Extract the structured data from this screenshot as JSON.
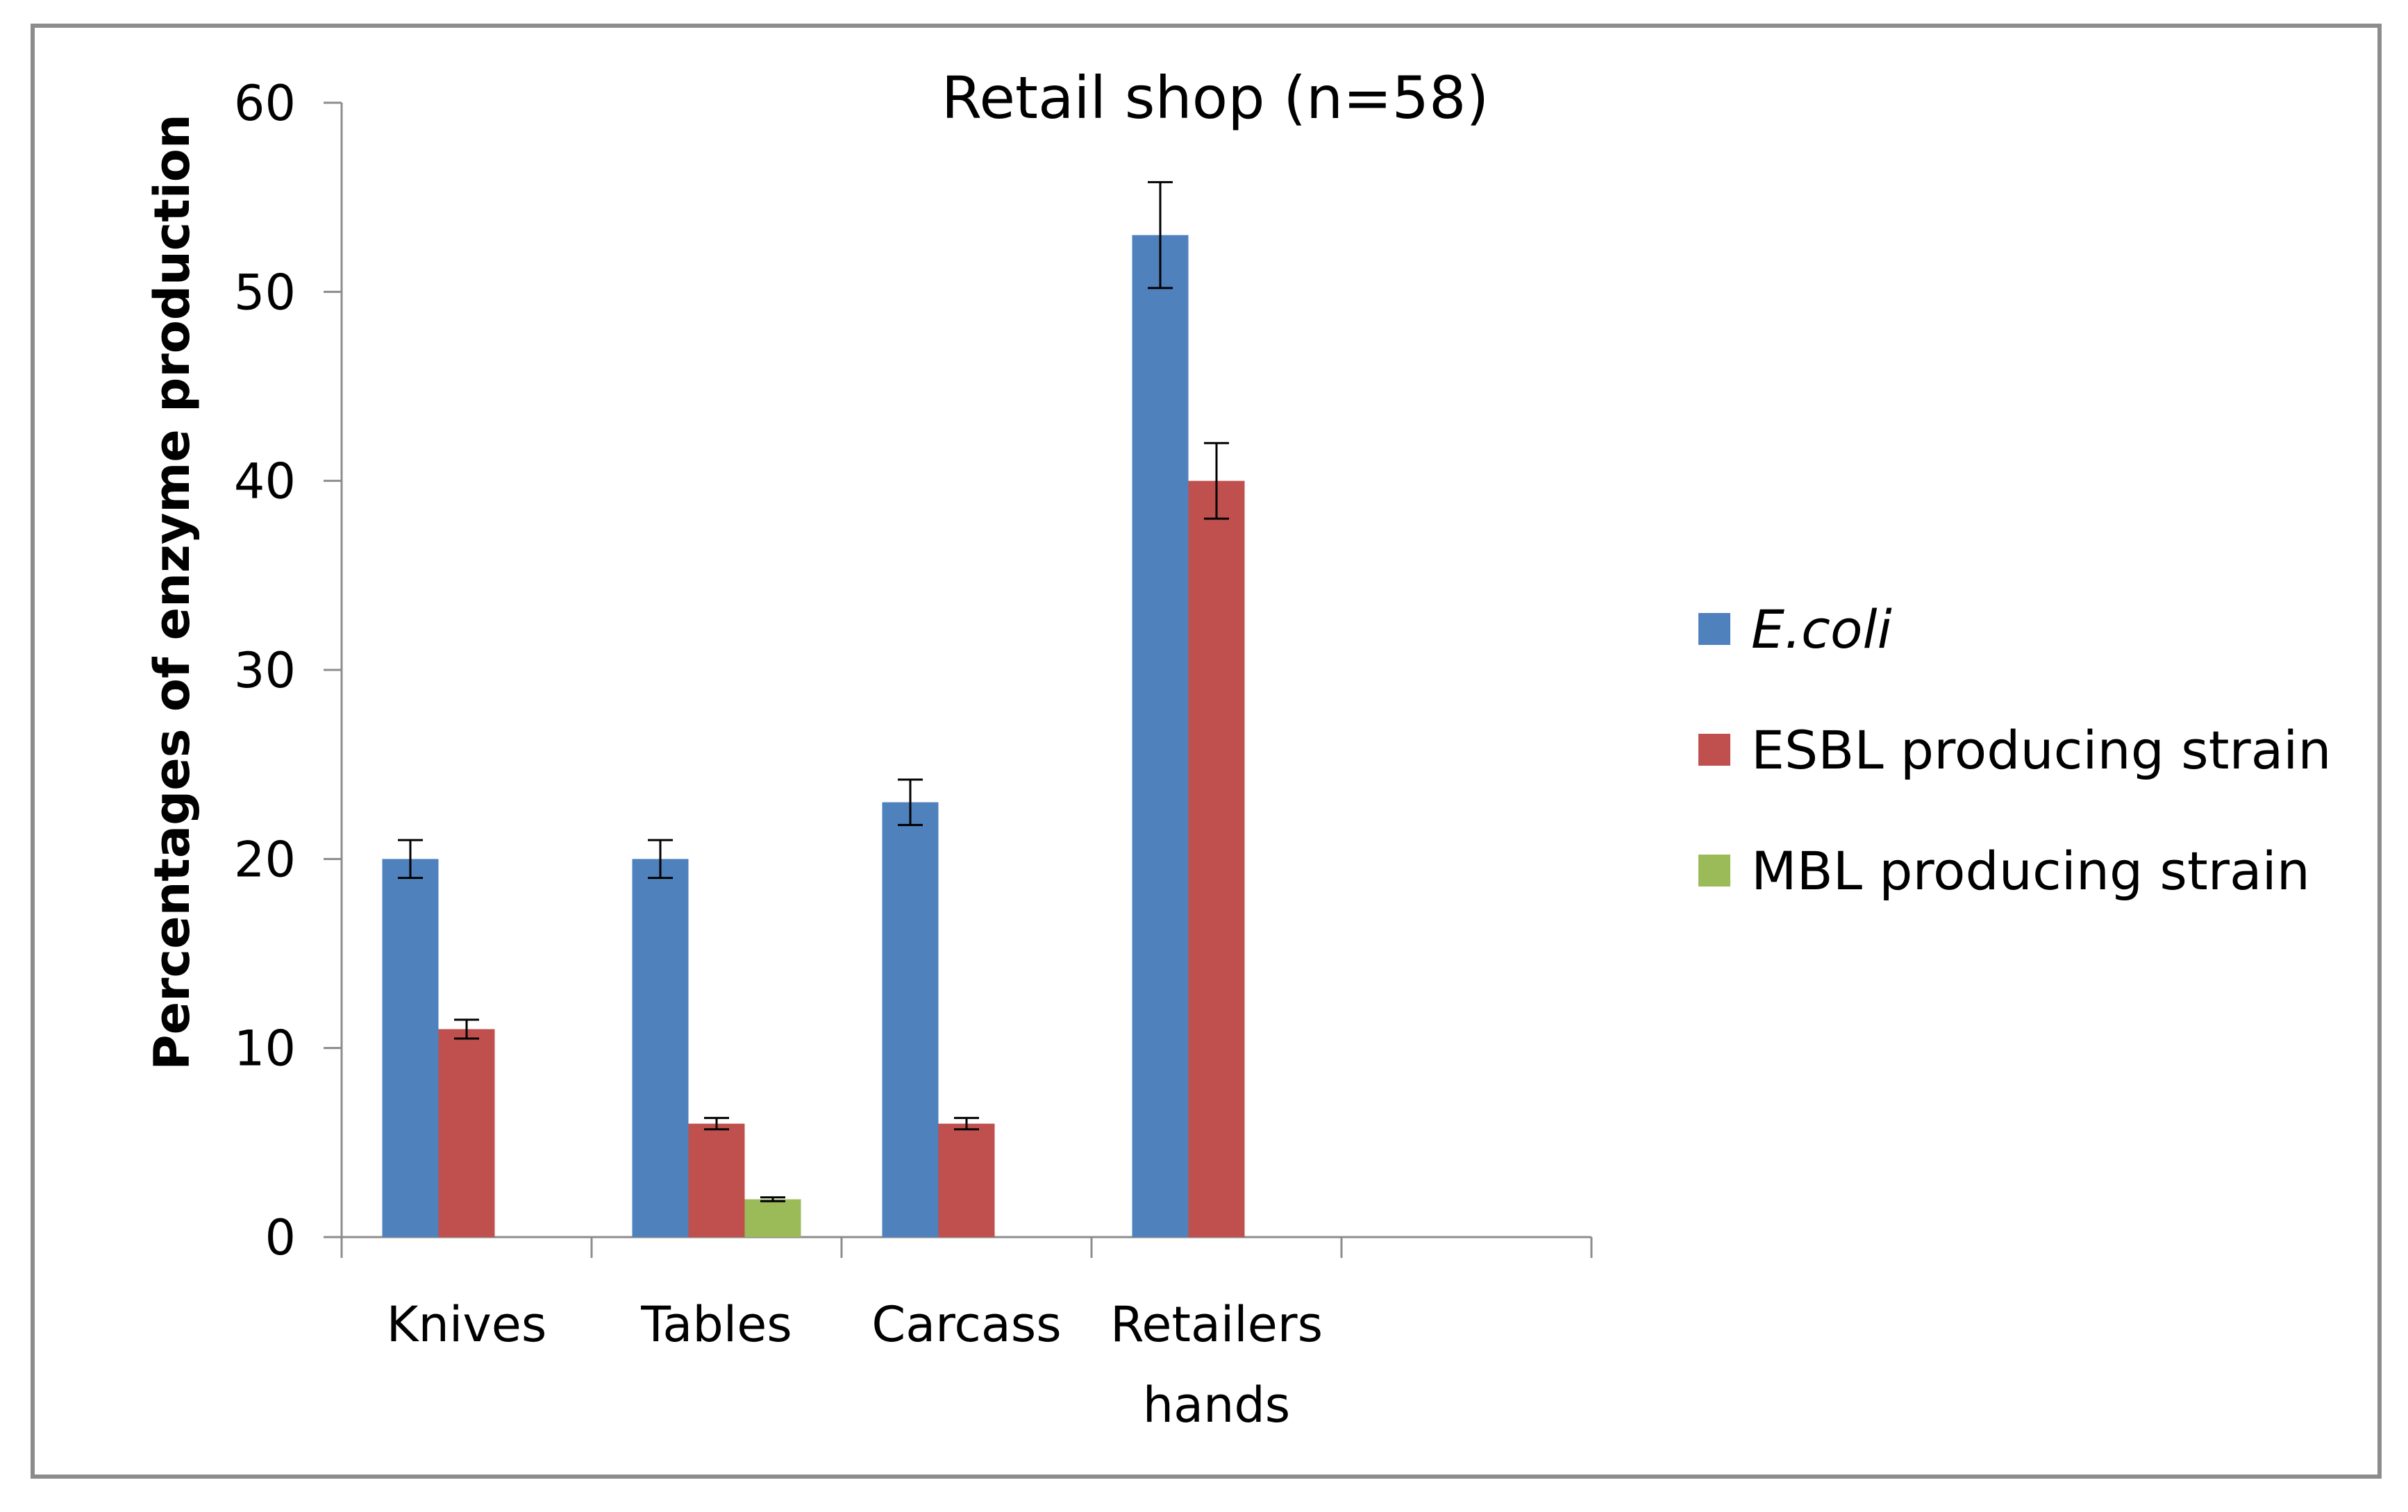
{
  "chart_data": {
    "type": "bar",
    "title": "Retail shop (n=58)",
    "xlabel": "",
    "ylabel": "Percentages of enzyme production",
    "ylim": [
      0,
      60
    ],
    "yticks": [
      0,
      10,
      20,
      30,
      40,
      50,
      60
    ],
    "grid": false,
    "legend_position": "right",
    "categories": [
      [
        "Knives"
      ],
      [
        "Tables"
      ],
      [
        "Carcass"
      ],
      [
        "Retailers",
        "hands"
      ],
      [
        ""
      ]
    ],
    "series": [
      {
        "name": "E.coli",
        "italic": true,
        "color": "#4F81BD",
        "values": [
          20,
          20,
          23,
          53,
          null
        ],
        "errors": [
          1.0,
          1.0,
          1.2,
          2.8,
          null
        ]
      },
      {
        "name": "ESBL producing strain",
        "italic": false,
        "color": "#C0504D",
        "values": [
          11,
          6,
          6,
          40,
          null
        ],
        "errors": [
          0.5,
          0.3,
          0.3,
          2.0,
          null
        ]
      },
      {
        "name": "MBL producing strain",
        "italic": false,
        "color": "#9BBB59",
        "values": [
          null,
          2,
          null,
          null,
          null
        ],
        "errors": [
          null,
          0.1,
          null,
          null,
          null
        ]
      }
    ]
  }
}
